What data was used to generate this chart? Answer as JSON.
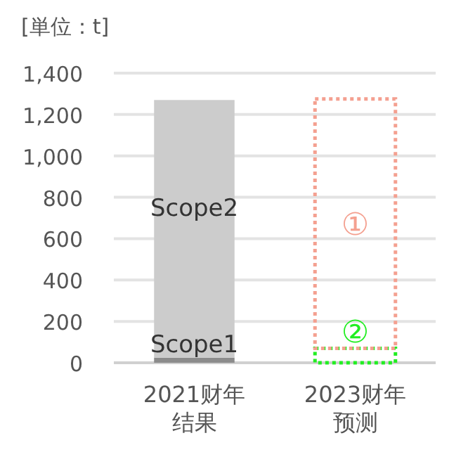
{
  "chart_data": {
    "type": "bar",
    "stacked": true,
    "ylabel": "[単位：t]",
    "categories": [
      "2021财年结果",
      "2023财年预测"
    ],
    "series": [
      {
        "name": "Scope1",
        "color": "#8c8c8c",
        "values": [
          25,
          null
        ]
      },
      {
        "name": "Scope2",
        "color": "#cccccc",
        "values": [
          1245,
          null
        ]
      },
      {
        "name": "②",
        "color": "#22ee22",
        "line_style": "dotted",
        "values": [
          null,
          70
        ]
      },
      {
        "name": "①",
        "color": "#f4a090",
        "line_style": "dotted",
        "values": [
          null,
          1205
        ]
      }
    ],
    "ylim": [
      0,
      1400
    ],
    "yticks": [
      0,
      200,
      400,
      600,
      800,
      {
        "value": 1000,
        "label": "1,000"
      },
      {
        "value": 1200,
        "label": "1,200"
      },
      {
        "value": 1400,
        "label": "1,400"
      }
    ],
    "grid": "y",
    "legend": false
  }
}
